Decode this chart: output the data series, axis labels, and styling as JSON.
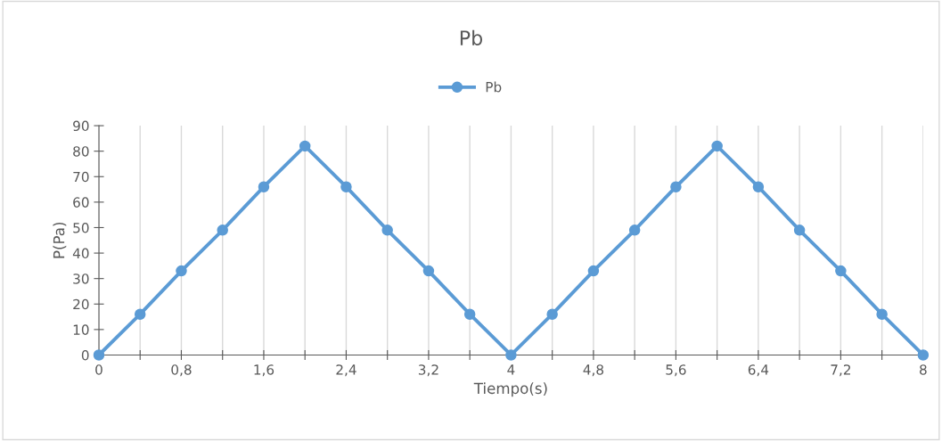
{
  "chart_data": {
    "type": "line",
    "title": "Pb",
    "xlabel": "Tiempo(s)",
    "ylabel": "P(Pa)",
    "x": [
      0,
      0.4,
      0.8,
      1.2,
      1.6,
      2,
      2.4,
      2.8,
      3.2,
      3.6,
      4,
      4.4,
      4.8,
      5.2,
      5.6,
      6,
      6.4,
      6.8,
      7.2,
      7.6,
      8
    ],
    "series": [
      {
        "name": "Pb",
        "color": "#5b9bd5",
        "values": [
          0,
          16,
          33,
          49,
          66,
          82,
          66,
          49,
          33,
          16,
          0,
          16,
          33,
          49,
          66,
          82,
          66,
          49,
          33,
          16,
          0
        ]
      }
    ],
    "xlim": [
      0,
      8
    ],
    "xticks": [
      0,
      {
        "value": 0.4,
        "label": null
      },
      {
        "value": 0.8,
        "label": "0,8"
      },
      {
        "value": 1.2,
        "label": null
      },
      {
        "value": 1.6,
        "label": "1,6"
      },
      {
        "value": 2,
        "label": null
      },
      {
        "value": 2.4,
        "label": "2,4"
      },
      {
        "value": 2.8,
        "label": null
      },
      {
        "value": 3.2,
        "label": "3,2"
      },
      {
        "value": 3.6,
        "label": null
      },
      4,
      {
        "value": 4.4,
        "label": null
      },
      {
        "value": 4.8,
        "label": "4,8"
      },
      {
        "value": 5.2,
        "label": null
      },
      {
        "value": 5.6,
        "label": "5,6"
      },
      {
        "value": 6,
        "label": null
      },
      {
        "value": 6.4,
        "label": "6,4"
      },
      {
        "value": 6.8,
        "label": null
      },
      {
        "value": 7.2,
        "label": "7,2"
      },
      {
        "value": 7.6,
        "label": null
      },
      8
    ],
    "ylim": [
      0,
      90
    ],
    "yticks": [
      0,
      10,
      20,
      30,
      40,
      50,
      60,
      70,
      80,
      90
    ],
    "grid": "x",
    "legend": "top",
    "marker": "circle",
    "line_style": "solid"
  }
}
